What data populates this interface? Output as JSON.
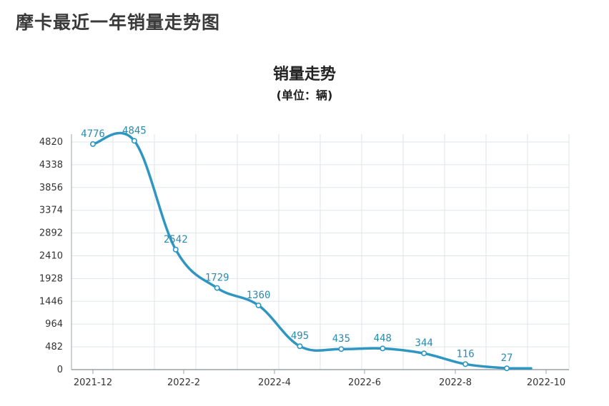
{
  "page": {
    "title": "摩卡最近一年销量走势图"
  },
  "chart_data": {
    "type": "line",
    "title": "销量走势",
    "subtitle": "(单位：辆)",
    "xlabel": "",
    "ylabel": "",
    "x_tick_labels": [
      "2021-12",
      "2022-2",
      "2022-4",
      "2022-6",
      "2022-8",
      "2022-10"
    ],
    "y_ticks": [
      0,
      482,
      964,
      1446,
      1928,
      2410,
      2892,
      3374,
      3856,
      4338,
      4820
    ],
    "ylim": [
      0,
      4820
    ],
    "series": [
      {
        "values": [
          4776,
          4845,
          2542,
          1729,
          1360,
          495,
          435,
          448,
          344,
          116,
          27
        ]
      }
    ],
    "grid": true,
    "colors": {
      "line": "#2f96c2",
      "grid": "#dfe5ea",
      "label": "#2a8bb0"
    }
  }
}
